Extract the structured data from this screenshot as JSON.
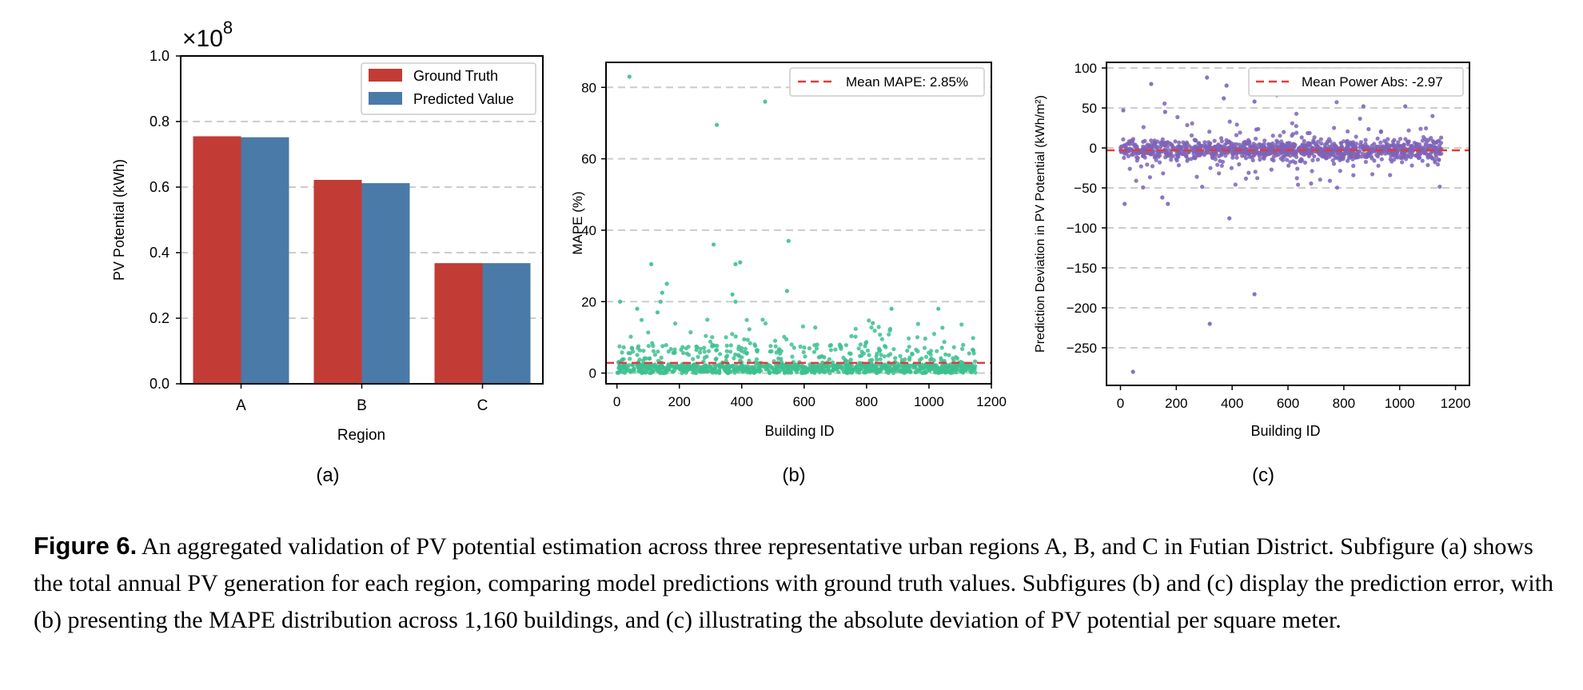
{
  "chart_data": [
    {
      "type": "bar",
      "panel_label": "(a)",
      "categories": [
        "A",
        "B",
        "C"
      ],
      "series": [
        {
          "name": "Ground Truth",
          "values": [
            0.755,
            0.622,
            0.368
          ],
          "color": "#c23b35"
        },
        {
          "name": "Predicted Value",
          "values": [
            0.752,
            0.612,
            0.368
          ],
          "color": "#4a7aa7"
        }
      ],
      "xlabel": "Region",
      "ylabel": "PV Potential (kWh)",
      "ylim": [
        0,
        1.0
      ],
      "yticks": [
        0.0,
        0.2,
        0.4,
        0.6,
        0.8,
        1.0
      ],
      "ytick_labels": [
        "0.0",
        "0.2",
        "0.4",
        "0.6",
        "0.8",
        "1.0"
      ],
      "scale_label_base": "×10",
      "scale_label_exp": "8",
      "legend_position": "top-right",
      "grid": "horizontal-dashed"
    },
    {
      "type": "scatter",
      "panel_label": "(b)",
      "xlabel": "Building ID",
      "ylabel": "MAPE (%)",
      "xlim": [
        -35,
        1200
      ],
      "ylim": [
        -3,
        87
      ],
      "xticks": [
        0,
        200,
        400,
        600,
        800,
        1000,
        1200
      ],
      "yticks": [
        0,
        20,
        40,
        60,
        80
      ],
      "color": "#3dbf8f",
      "mean_line": {
        "name": "Mean MAPE: 2.85%",
        "value": 2.85,
        "color": "#e03b3b"
      },
      "highlighted_points": [
        [
          40,
          83
        ],
        [
          475,
          76
        ],
        [
          320,
          69.5
        ],
        [
          550,
          37
        ],
        [
          310,
          36
        ],
        [
          395,
          31
        ],
        [
          380,
          30.5
        ],
        [
          110,
          30.5
        ],
        [
          160,
          25
        ],
        [
          545,
          23
        ],
        [
          145,
          22.5
        ],
        [
          370,
          22
        ],
        [
          1030,
          18
        ],
        [
          880,
          18
        ],
        [
          65,
          18
        ],
        [
          10,
          20
        ],
        [
          140,
          20
        ],
        [
          380,
          20
        ],
        [
          130,
          17
        ],
        [
          820,
          14
        ]
      ],
      "n_points": 1160,
      "legend_position": "top-right",
      "grid": "horizontal-dashed"
    },
    {
      "type": "scatter",
      "panel_label": "(c)",
      "xlabel": "Building ID",
      "ylabel": "Prediction Deviation in PV Potential (kWh/m²)",
      "xlim": [
        -50,
        1250
      ],
      "ylim": [
        -297,
        107
      ],
      "xticks": [
        0,
        200,
        400,
        600,
        800,
        1000,
        1200
      ],
      "yticks": [
        100,
        50,
        0,
        -50,
        -100,
        -150,
        -200,
        -250
      ],
      "color": "#7d63b8",
      "mean_line": {
        "name": "Mean Power Abs: -2.97",
        "value": -2.97,
        "color": "#e03b3b"
      },
      "highlighted_points": [
        [
          45,
          -280
        ],
        [
          320,
          -220
        ],
        [
          480,
          -183
        ],
        [
          390,
          -88
        ],
        [
          15,
          -70
        ],
        [
          170,
          -70
        ],
        [
          150,
          -62
        ],
        [
          310,
          88
        ],
        [
          110,
          80
        ],
        [
          380,
          78
        ],
        [
          560,
          66
        ],
        [
          370,
          62
        ],
        [
          480,
          58
        ],
        [
          1020,
          52
        ],
        [
          870,
          52
        ],
        [
          10,
          47
        ],
        [
          160,
          45
        ]
      ],
      "n_points": 1160,
      "legend_position": "top-right",
      "grid": "horizontal-dashed"
    }
  ],
  "caption": {
    "label": "Figure 6.",
    "text": " An aggregated validation of PV potential estimation across three representative urban regions A, B, and C in Futian District. Subfigure (a) shows the total annual PV generation for each region, comparing model predictions with ground truth values. Subfigures (b) and (c) display the prediction error, with (b) presenting the MAPE distribution across 1,160 buildings, and (c) illustrating the absolute deviation of PV potential per square meter."
  }
}
